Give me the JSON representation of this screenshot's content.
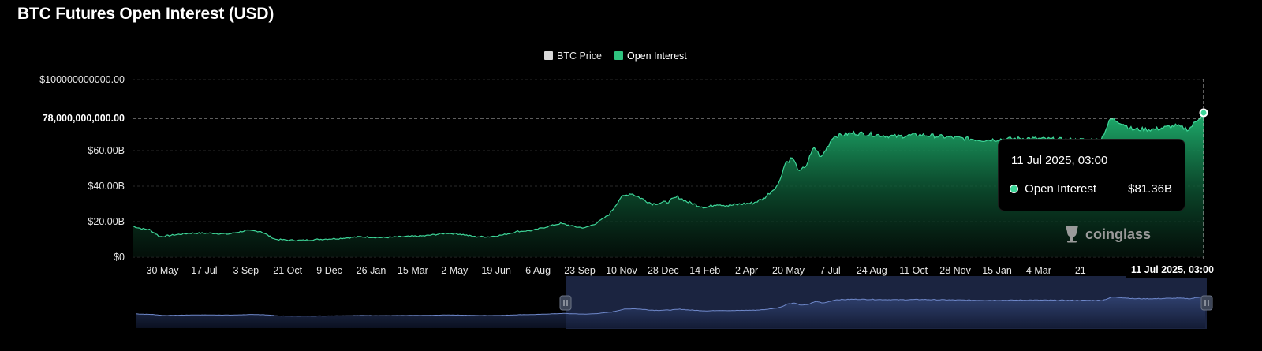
{
  "title": "BTC Futures Open Interest (USD)",
  "legend": [
    {
      "label": "BTC Price",
      "color": "#d9d9d9",
      "active": false
    },
    {
      "label": "Open Interest",
      "color": "#2ec27e",
      "active": true
    }
  ],
  "y_axis": {
    "ticks": [
      "$0",
      "$20.00B",
      "$40.00B",
      "$60.00B",
      "$100000000000.00"
    ],
    "crosshair_label": "78,000,000,000.00"
  },
  "x_axis": {
    "ticks": [
      "30 May",
      "17 Jul",
      "3 Sep",
      "21 Oct",
      "9 Dec",
      "26 Jan",
      "15 Mar",
      "2 May",
      "19 Jun",
      "6 Aug",
      "23 Sep",
      "10 Nov",
      "28 Dec",
      "14 Feb",
      "2 Apr",
      "20 May",
      "7 Jul",
      "24 Aug",
      "11 Oct",
      "28 Nov",
      "15 Jan",
      "4 Mar",
      "21"
    ],
    "crosshair_label": "11 Jul 2025, 03:00"
  },
  "tooltip": {
    "date": "11 Jul 2025, 03:00",
    "series": "Open Interest",
    "value": "$81.36B"
  },
  "watermark": "coinglass",
  "colors": {
    "oi": "#2ec27e",
    "navigator": "#6e87c9",
    "navigator_window": "#1e2a4a"
  },
  "chart_data": {
    "type": "area",
    "title": "BTC Futures Open Interest (USD)",
    "series": [
      {
        "name": "Open Interest",
        "unit": "USD billions",
        "points": [
          [
            "2021-05-12",
            17.5
          ],
          [
            "2021-05-25",
            16
          ],
          [
            "2021-06-05",
            15.5
          ],
          [
            "2021-06-20",
            11.5
          ],
          [
            "2021-07-10",
            12.5
          ],
          [
            "2021-08-01",
            13.5
          ],
          [
            "2021-09-01",
            13.5
          ],
          [
            "2021-09-25",
            13
          ],
          [
            "2021-10-21",
            15
          ],
          [
            "2021-11-10",
            14.5
          ],
          [
            "2021-12-01",
            10
          ],
          [
            "2021-12-20",
            9.5
          ],
          [
            "2022-01-10",
            9.5
          ],
          [
            "2022-02-01",
            10
          ],
          [
            "2022-03-01",
            10.5
          ],
          [
            "2022-04-01",
            11.5
          ],
          [
            "2022-05-01",
            11
          ],
          [
            "2022-06-01",
            11.5
          ],
          [
            "2022-07-01",
            12
          ],
          [
            "2022-08-01",
            13.5
          ],
          [
            "2022-08-20",
            13
          ],
          [
            "2022-09-10",
            11.5
          ],
          [
            "2022-10-01",
            11.5
          ],
          [
            "2022-10-20",
            12.5
          ],
          [
            "2022-11-10",
            14.5
          ],
          [
            "2022-12-01",
            15
          ],
          [
            "2022-12-20",
            17
          ],
          [
            "2023-01-10",
            19
          ],
          [
            "2023-02-01",
            17
          ],
          [
            "2023-02-14",
            16.5
          ],
          [
            "2023-03-01",
            19
          ],
          [
            "2023-03-20",
            24
          ],
          [
            "2023-04-05",
            33.5
          ],
          [
            "2023-04-20",
            36
          ],
          [
            "2023-05-05",
            33
          ],
          [
            "2023-05-20",
            30
          ],
          [
            "2023-06-10",
            31
          ],
          [
            "2023-06-25",
            34
          ],
          [
            "2023-07-10",
            31
          ],
          [
            "2023-07-25",
            29
          ],
          [
            "2023-08-05",
            28
          ],
          [
            "2023-08-20",
            30
          ],
          [
            "2023-09-05",
            29
          ],
          [
            "2023-09-25",
            30
          ],
          [
            "2023-10-10",
            30.5
          ],
          [
            "2023-10-25",
            33
          ],
          [
            "2023-11-05",
            37
          ],
          [
            "2023-11-15",
            41
          ],
          [
            "2023-11-25",
            53
          ],
          [
            "2023-12-05",
            56
          ],
          [
            "2023-12-15",
            48
          ],
          [
            "2023-12-25",
            52
          ],
          [
            "2024-01-05",
            62
          ],
          [
            "2024-01-15",
            56
          ],
          [
            "2024-02-01",
            68
          ],
          [
            "2024-03-01",
            70
          ],
          [
            "2024-04-01",
            69
          ],
          [
            "2024-05-01",
            68
          ],
          [
            "2024-06-01",
            69
          ],
          [
            "2024-07-01",
            68
          ],
          [
            "2024-09-01",
            66
          ],
          [
            "2024-11-01",
            67
          ],
          [
            "2025-01-01",
            66
          ],
          [
            "2025-02-15",
            66
          ],
          [
            "2025-03-01",
            78
          ],
          [
            "2025-03-15",
            76
          ],
          [
            "2025-04-01",
            72
          ],
          [
            "2025-05-01",
            72
          ],
          [
            "2025-06-01",
            74
          ],
          [
            "2025-06-20",
            72
          ],
          [
            "2025-07-01",
            77
          ],
          [
            "2025-07-11",
            81.36
          ]
        ]
      }
    ],
    "ylim": [
      0,
      100
    ],
    "ylabel": "",
    "xlabel": "",
    "grid": true,
    "legend_position": "top-center"
  }
}
